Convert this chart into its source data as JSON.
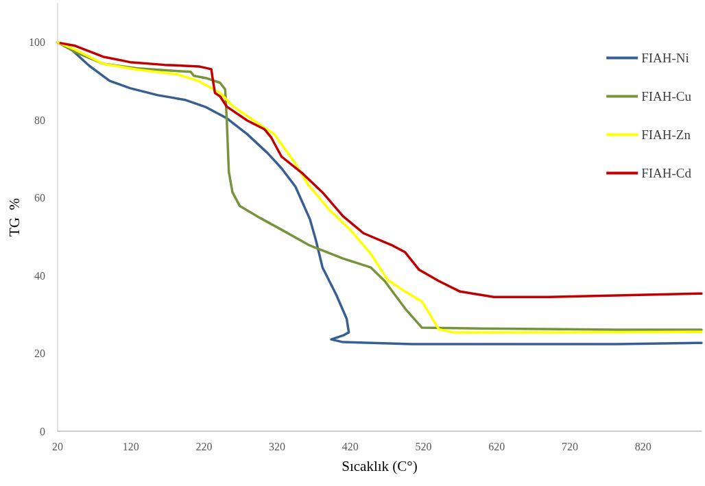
{
  "chart_data": {
    "type": "line",
    "xlabel": "Sıcaklık (C°)",
    "ylabel": "TG  %",
    "xlim": [
      20,
      900
    ],
    "xticks": [
      20,
      120,
      220,
      320,
      420,
      520,
      620,
      720,
      820
    ],
    "ylim": [
      0,
      110
    ],
    "yticks": [
      0,
      20,
      40,
      60,
      80,
      100
    ],
    "grid": false,
    "legend": "top right",
    "marker": "none",
    "line_style": "solid",
    "series": [
      {
        "name": "FIAH-Ni",
        "color": "#375f92",
        "x": [
          20,
          35,
          63,
          91,
          119,
          157,
          194,
          223,
          251,
          279,
          307,
          326,
          345,
          365,
          373,
          382,
          401,
          415,
          418,
          410,
          394,
          410,
          504,
          598,
          785,
          900
        ],
        "values": [
          100,
          98.8,
          94,
          90.1,
          88.2,
          86.4,
          85.2,
          83.3,
          80.5,
          76.4,
          71.5,
          67.6,
          62.9,
          54.4,
          49.1,
          42.1,
          35,
          28.9,
          25.4,
          24.6,
          23.6,
          22.9,
          22.4,
          22.4,
          22.4,
          22.7
        ]
      },
      {
        "name": "FIAH-Cu",
        "color": "#77933c",
        "x": [
          20,
          44,
          82,
          129,
          185,
          202,
          206,
          223,
          242,
          249,
          251,
          254,
          259,
          269,
          297,
          326,
          363,
          410,
          448,
          467,
          495,
          518,
          598,
          786,
          900
        ],
        "values": [
          100,
          97.5,
          94.5,
          93.3,
          92.6,
          92.4,
          91.4,
          90.8,
          89.6,
          87.9,
          80.8,
          66.7,
          61.4,
          57.9,
          54.8,
          51.8,
          47.9,
          44.4,
          42.1,
          38.6,
          31.5,
          26.6,
          26.4,
          26.1,
          26.1
        ]
      },
      {
        "name": "FIAH-Zn",
        "color": "#ffff00",
        "x": [
          20,
          44,
          82,
          129,
          185,
          213,
          242,
          260,
          288,
          316,
          345,
          363,
          391,
          420,
          448,
          471,
          495,
          518,
          527,
          541,
          560,
          692,
          900
        ],
        "values": [
          100,
          98.1,
          94.5,
          93,
          91.7,
          90,
          87,
          83.5,
          79.9,
          76.4,
          68.8,
          63.2,
          57,
          51.8,
          45.6,
          38.9,
          35.9,
          33.3,
          30.6,
          26.2,
          25.4,
          25.4,
          25.5
        ]
      },
      {
        "name": "FIAH-Cd",
        "color": "#c00000",
        "x": [
          24,
          44,
          82,
          119,
          166,
          213,
          230,
          232,
          235,
          242,
          251,
          279,
          303,
          312,
          326,
          354,
          382,
          410,
          438,
          476,
          495,
          514,
          541,
          570,
          616,
          692,
          900
        ],
        "values": [
          99.8,
          99.1,
          96.3,
          94.9,
          94.2,
          93.8,
          93.1,
          90.5,
          87,
          86.1,
          83.5,
          79.9,
          77.6,
          75.5,
          70.6,
          66.4,
          61.4,
          55.3,
          50.9,
          47.9,
          46,
          41.5,
          38.6,
          35.9,
          34.5,
          34.5,
          35.4
        ]
      }
    ]
  }
}
